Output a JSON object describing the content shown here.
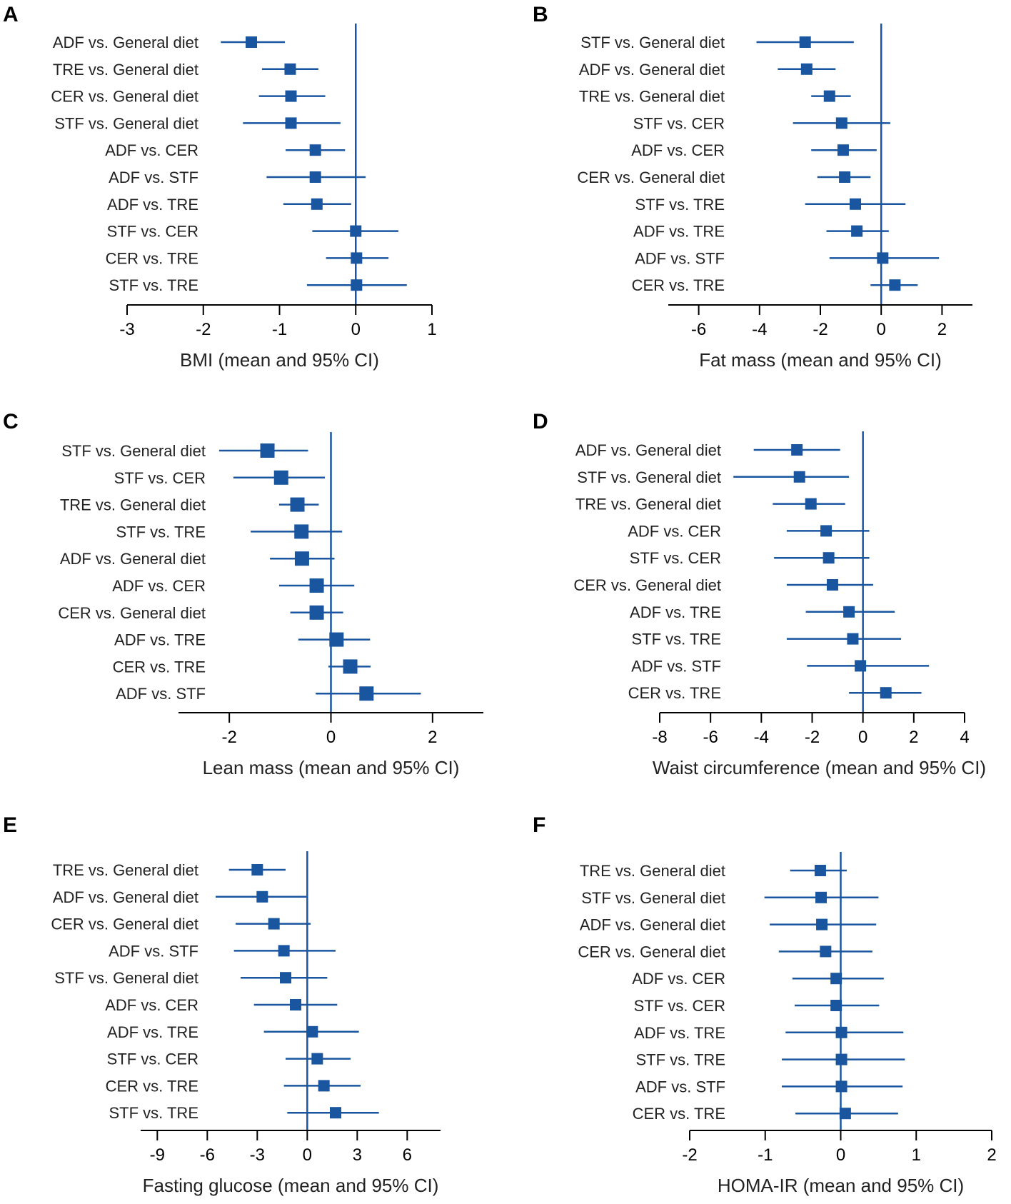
{
  "colors": {
    "mark": "#1a56a0",
    "axis": "#000000",
    "text": "#222222"
  },
  "chart_data": [
    {
      "type": "forest",
      "panel": "A",
      "xlabel": "BMI (mean and 95% CI)",
      "xlim": [
        -3,
        1
      ],
      "ticks": [
        -3,
        -2,
        -1,
        0,
        1
      ],
      "tick_labels": [
        "-3",
        "-2",
        "-1",
        "0",
        "1"
      ],
      "rows": [
        {
          "label": "ADF vs. General diet",
          "mean": -1.37,
          "lo": -1.77,
          "hi": -0.93
        },
        {
          "label": "TRE vs. General diet",
          "mean": -0.86,
          "lo": -1.23,
          "hi": -0.49
        },
        {
          "label": "CER vs. General diet",
          "mean": -0.85,
          "lo": -1.27,
          "hi": -0.4
        },
        {
          "label": "STF vs. General diet",
          "mean": -0.85,
          "lo": -1.48,
          "hi": -0.2
        },
        {
          "label": "ADF vs. CER",
          "mean": -0.53,
          "lo": -0.92,
          "hi": -0.14
        },
        {
          "label": "ADF vs. STF",
          "mean": -0.53,
          "lo": -1.17,
          "hi": 0.13
        },
        {
          "label": "ADF vs. TRE",
          "mean": -0.51,
          "lo": -0.95,
          "hi": -0.06
        },
        {
          "label": "STF vs. CER",
          "mean": 0.0,
          "lo": -0.57,
          "hi": 0.56
        },
        {
          "label": "CER vs. TRE",
          "mean": 0.01,
          "lo": -0.39,
          "hi": 0.43
        },
        {
          "label": "STF vs. TRE",
          "mean": 0.01,
          "lo": -0.64,
          "hi": 0.67
        }
      ]
    },
    {
      "type": "forest",
      "panel": "B",
      "xlabel": "Fat mass (mean and 95% CI)",
      "xlim": [
        -7,
        3
      ],
      "ticks": [
        -6,
        -4,
        -2,
        0,
        2
      ],
      "tick_labels": [
        "-6",
        "-4",
        "-2",
        "0",
        "2"
      ],
      "rows": [
        {
          "label": "STF vs. General diet",
          "mean": -2.5,
          "lo": -4.1,
          "hi": -0.9
        },
        {
          "label": "ADF vs. General diet",
          "mean": -2.45,
          "lo": -3.4,
          "hi": -1.5
        },
        {
          "label": "TRE vs. General diet",
          "mean": -1.7,
          "lo": -2.3,
          "hi": -1.0
        },
        {
          "label": "STF vs. CER",
          "mean": -1.3,
          "lo": -2.9,
          "hi": 0.3
        },
        {
          "label": "ADF vs. CER",
          "mean": -1.25,
          "lo": -2.3,
          "hi": -0.15
        },
        {
          "label": "CER vs. General diet",
          "mean": -1.2,
          "lo": -2.1,
          "hi": -0.35
        },
        {
          "label": "STF vs. TRE",
          "mean": -0.85,
          "lo": -2.5,
          "hi": 0.8
        },
        {
          "label": "ADF vs. TRE",
          "mean": -0.8,
          "lo": -1.8,
          "hi": 0.25
        },
        {
          "label": "ADF vs. STF",
          "mean": 0.05,
          "lo": -1.7,
          "hi": 1.9
        },
        {
          "label": "CER vs. TRE",
          "mean": 0.45,
          "lo": -0.35,
          "hi": 1.2
        }
      ]
    },
    {
      "type": "forest",
      "panel": "C",
      "xlabel": "Lean mass (mean and 95% CI)",
      "xlim": [
        -3,
        3
      ],
      "ticks": [
        -2,
        0,
        2
      ],
      "tick_labels": [
        "-2",
        "0",
        "2"
      ],
      "rows": [
        {
          "label": "STF vs. General diet",
          "mean": -1.25,
          "lo": -2.2,
          "hi": -0.45
        },
        {
          "label": "STF vs. CER",
          "mean": -0.98,
          "lo": -1.92,
          "hi": -0.12
        },
        {
          "label": "TRE vs. General diet",
          "mean": -0.66,
          "lo": -1.02,
          "hi": -0.24
        },
        {
          "label": "STF vs. TRE",
          "mean": -0.58,
          "lo": -1.58,
          "hi": 0.22
        },
        {
          "label": "ADF vs. General diet",
          "mean": -0.57,
          "lo": -1.2,
          "hi": 0.07
        },
        {
          "label": "ADF vs. CER",
          "mean": -0.28,
          "lo": -1.02,
          "hi": 0.46
        },
        {
          "label": "CER vs. General diet",
          "mean": -0.28,
          "lo": -0.8,
          "hi": 0.24
        },
        {
          "label": "ADF vs. TRE",
          "mean": 0.11,
          "lo": -0.64,
          "hi": 0.77
        },
        {
          "label": "CER vs. TRE",
          "mean": 0.38,
          "lo": -0.05,
          "hi": 0.78
        },
        {
          "label": "ADF vs. STF",
          "mean": 0.7,
          "lo": -0.3,
          "hi": 1.77
        }
      ]
    },
    {
      "type": "forest",
      "panel": "D",
      "xlabel": "Waist circumference (mean and 95% CI)",
      "xlim": [
        -8,
        4
      ],
      "ticks": [
        -8,
        -6,
        -4,
        -2,
        0,
        2,
        4
      ],
      "tick_labels": [
        "-8",
        "-6",
        "-4",
        "-2",
        "0",
        "2",
        "4"
      ],
      "rows": [
        {
          "label": "ADF vs. General diet",
          "mean": -2.6,
          "lo": -4.3,
          "hi": -0.9
        },
        {
          "label": "STF vs. General diet",
          "mean": -2.5,
          "lo": -5.1,
          "hi": -0.55
        },
        {
          "label": "TRE vs. General diet",
          "mean": -2.05,
          "lo": -3.55,
          "hi": -0.7
        },
        {
          "label": "ADF vs. CER",
          "mean": -1.45,
          "lo": -3.0,
          "hi": 0.25
        },
        {
          "label": "STF vs. CER",
          "mean": -1.35,
          "lo": -3.5,
          "hi": 0.25
        },
        {
          "label": "CER vs. General diet",
          "mean": -1.2,
          "lo": -3.0,
          "hi": 0.4
        },
        {
          "label": "ADF vs. TRE",
          "mean": -0.55,
          "lo": -2.25,
          "hi": 1.25
        },
        {
          "label": "STF vs. TRE",
          "mean": -0.4,
          "lo": -3.0,
          "hi": 1.5
        },
        {
          "label": "ADF vs. STF",
          "mean": -0.1,
          "lo": -2.2,
          "hi": 2.6
        },
        {
          "label": "CER vs. TRE",
          "mean": 0.9,
          "lo": -0.55,
          "hi": 2.3
        }
      ]
    },
    {
      "type": "forest",
      "panel": "E",
      "xlabel": "Fasting glucose (mean and 95% CI)",
      "xlim": [
        -10,
        8
      ],
      "ticks": [
        -9,
        -6,
        -3,
        0,
        3,
        6
      ],
      "tick_labels": [
        "-9",
        "-6",
        "-3",
        "0",
        "3",
        "6"
      ],
      "rows": [
        {
          "label": "TRE vs. General diet",
          "mean": -3.0,
          "lo": -4.7,
          "hi": -1.3
        },
        {
          "label": "ADF vs. General diet",
          "mean": -2.7,
          "lo": -5.5,
          "hi": -0.05
        },
        {
          "label": "CER vs. General diet",
          "mean": -2.0,
          "lo": -4.3,
          "hi": 0.2
        },
        {
          "label": "ADF vs. STF",
          "mean": -1.4,
          "lo": -4.4,
          "hi": 1.7
        },
        {
          "label": "STF vs. General diet",
          "mean": -1.3,
          "lo": -4.0,
          "hi": 1.2
        },
        {
          "label": "ADF vs. CER",
          "mean": -0.7,
          "lo": -3.2,
          "hi": 1.8
        },
        {
          "label": "ADF vs. TRE",
          "mean": 0.3,
          "lo": -2.6,
          "hi": 3.1
        },
        {
          "label": "STF vs. CER",
          "mean": 0.6,
          "lo": -1.3,
          "hi": 2.6
        },
        {
          "label": "CER vs. TRE",
          "mean": 1.0,
          "lo": -1.4,
          "hi": 3.2
        },
        {
          "label": "STF vs. TRE",
          "mean": 1.7,
          "lo": -1.2,
          "hi": 4.3
        }
      ]
    },
    {
      "type": "forest",
      "panel": "F",
      "xlabel": "HOMA-IR (mean and 95% CI)",
      "xlim": [
        -2,
        2
      ],
      "ticks": [
        -2,
        -1,
        0,
        1,
        2
      ],
      "tick_labels": [
        "-2",
        "-1",
        "0",
        "1",
        "2"
      ],
      "rows": [
        {
          "label": "TRE vs. General diet",
          "mean": -0.27,
          "lo": -0.67,
          "hi": 0.08
        },
        {
          "label": "STF vs. General diet",
          "mean": -0.26,
          "lo": -1.01,
          "hi": 0.5
        },
        {
          "label": "ADF vs. General diet",
          "mean": -0.25,
          "lo": -0.94,
          "hi": 0.47
        },
        {
          "label": "CER vs. General diet",
          "mean": -0.2,
          "lo": -0.82,
          "hi": 0.42
        },
        {
          "label": "ADF vs. CER",
          "mean": -0.06,
          "lo": -0.64,
          "hi": 0.57
        },
        {
          "label": "STF vs. CER",
          "mean": -0.06,
          "lo": -0.61,
          "hi": 0.51
        },
        {
          "label": "ADF vs. TRE",
          "mean": 0.01,
          "lo": -0.73,
          "hi": 0.83
        },
        {
          "label": "STF vs. TRE",
          "mean": 0.01,
          "lo": -0.78,
          "hi": 0.85
        },
        {
          "label": "ADF vs. STF",
          "mean": 0.01,
          "lo": -0.78,
          "hi": 0.82
        },
        {
          "label": "CER vs. TRE",
          "mean": 0.06,
          "lo": -0.6,
          "hi": 0.76
        }
      ]
    }
  ]
}
